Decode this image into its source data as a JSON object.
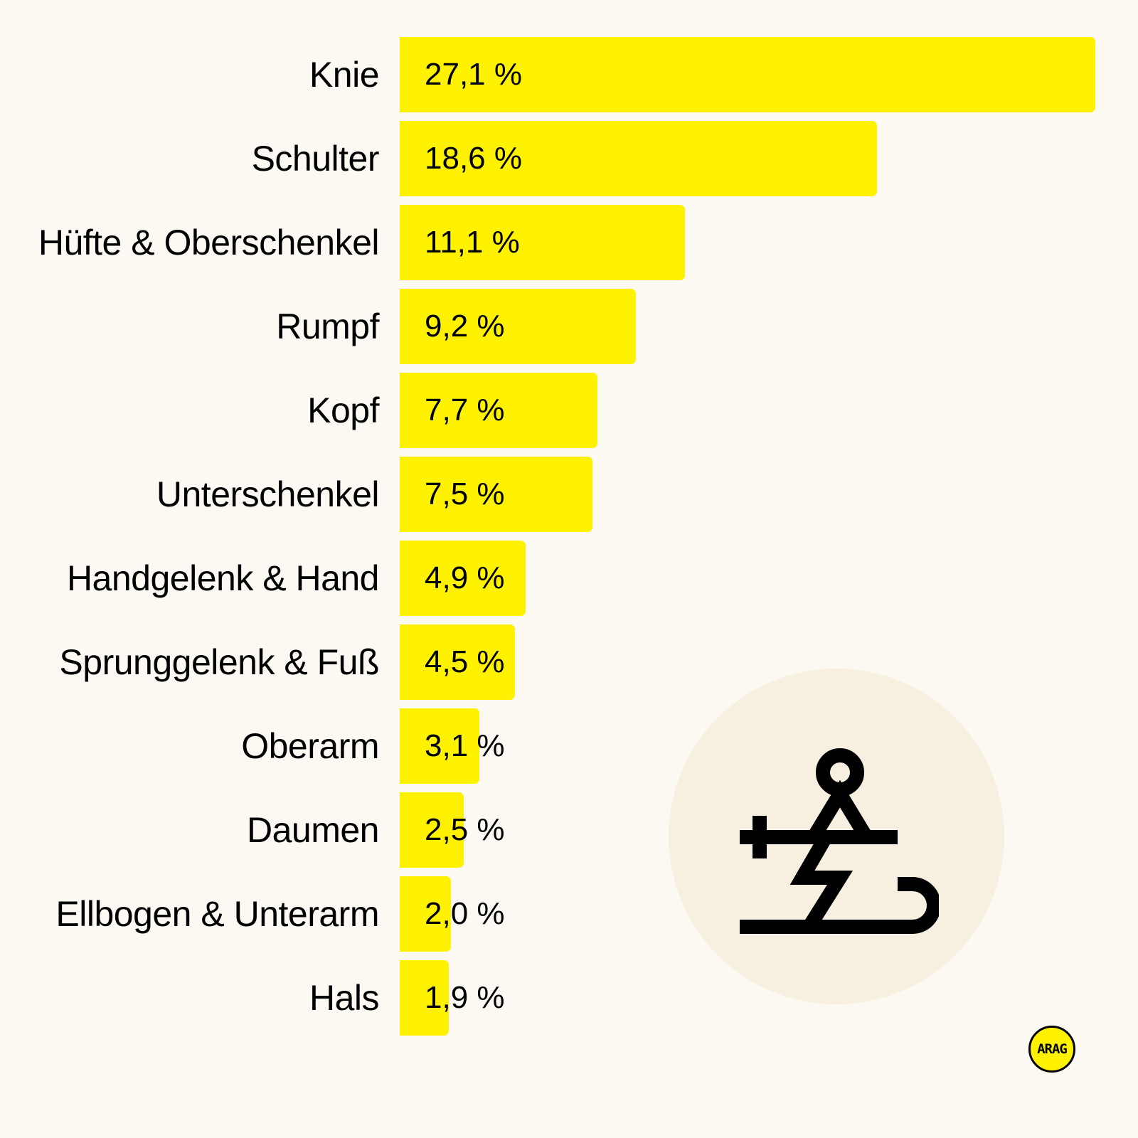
{
  "chart_data": {
    "type": "bar",
    "orientation": "horizontal",
    "title": "",
    "xlabel": "",
    "ylabel": "",
    "categories": [
      "Knie",
      "Schulter",
      "Hüfte & Oberschenkel",
      "Rumpf",
      "Kopf",
      "Unterschenkel",
      "Handgelenk & Hand",
      "Sprunggelenk & Fuß",
      "Oberarm",
      "Daumen",
      "Ellbogen & Unterarm",
      "Hals"
    ],
    "values": [
      27.1,
      18.6,
      11.1,
      9.2,
      7.7,
      7.5,
      4.9,
      4.5,
      3.1,
      2.5,
      2.0,
      1.9
    ],
    "value_labels": [
      "27,1 %",
      "18,6 %",
      "11,1 %",
      "9,2 %",
      "7,7 %",
      "7,5 %",
      "4,9 %",
      "4,5 %",
      "3,1 %",
      "2,5 %",
      "2,0 %",
      "1,9 %"
    ],
    "unit": "%",
    "grid": false,
    "legend": null,
    "bar_color": "#fff200"
  },
  "decor": {
    "icon": "skiing-injury-icon",
    "circle_color": "#f7efdf",
    "background_color": "#fcf9f2"
  },
  "brand": {
    "logo_text": "ARAG"
  }
}
